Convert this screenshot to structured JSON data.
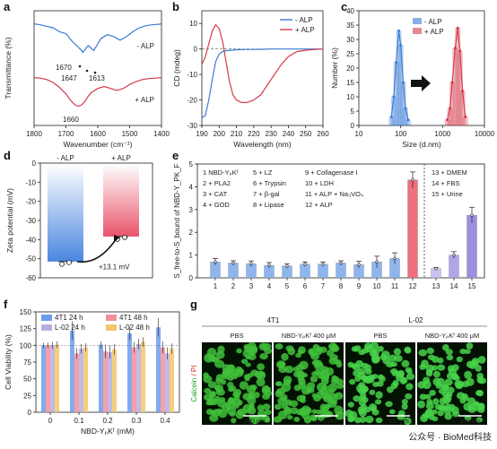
{
  "panels": {
    "a": {
      "label": "a",
      "chart_data": {
        "type": "line",
        "xlabel": "Wavenumber (cm⁻¹)",
        "ylabel": "Transmittance (%)",
        "xlim": [
          1800,
          1400
        ],
        "xticks": [
          "1800",
          "1700",
          "1600",
          "1500",
          "1400"
        ],
        "series": [
          {
            "name": "- ALP",
            "color": "#3a7bd5",
            "x": [
              1800,
              1780,
              1760,
              1740,
              1720,
              1700,
              1690,
              1680,
              1670,
              1660,
              1650,
              1647,
              1640,
              1630,
              1620,
              1613,
              1605,
              1590,
              1570,
              1550,
              1530,
              1510,
              1490,
              1470,
              1450,
              1430,
              1410,
              1400
            ],
            "y": [
              0.88,
              0.86,
              0.83,
              0.8,
              0.72,
              0.68,
              0.6,
              0.52,
              0.46,
              0.4,
              0.33,
              0.3,
              0.36,
              0.44,
              0.38,
              0.34,
              0.42,
              0.58,
              0.66,
              0.62,
              0.55,
              0.62,
              0.72,
              0.8,
              0.84,
              0.86,
              0.87,
              0.88
            ]
          },
          {
            "name": "+ ALP",
            "color": "#d33a4a",
            "x": [
              1800,
              1780,
              1760,
              1740,
              1720,
              1700,
              1690,
              1680,
              1670,
              1660,
              1650,
              1640,
              1630,
              1620,
              1610,
              1600,
              1580,
              1560,
              1540,
              1520,
              1500,
              1480,
              1460,
              1440,
              1420,
              1400
            ],
            "y": [
              0.88,
              0.87,
              0.84,
              0.78,
              0.68,
              0.55,
              0.46,
              0.38,
              0.32,
              0.3,
              0.33,
              0.4,
              0.5,
              0.58,
              0.62,
              0.66,
              0.7,
              0.66,
              0.62,
              0.66,
              0.74,
              0.8,
              0.84,
              0.86,
              0.87,
              0.88
            ]
          }
        ],
        "annotations": [
          "1670",
          "1647",
          "1613",
          "1660"
        ]
      }
    },
    "b": {
      "label": "b",
      "chart_data": {
        "type": "line",
        "xlabel": "Wavelength (nm)",
        "ylabel": "CD (mdeg)",
        "xlim": [
          190,
          260
        ],
        "ylim": [
          -30,
          15
        ],
        "xticks": [
          "190",
          "200",
          "210",
          "220",
          "230",
          "240",
          "250",
          "260"
        ],
        "yticks": [
          "-30",
          "-20",
          "-10",
          "0",
          "10"
        ],
        "series": [
          {
            "name": "- ALP",
            "color": "#3a7bd5",
            "x": [
              190,
              192,
              194,
              196,
              198,
              200,
              202,
              205,
              210,
              215,
              220,
              225,
              230,
              235,
              240,
              250,
              260
            ],
            "y": [
              -27,
              -26,
              -20,
              -12,
              -5,
              -2,
              -1,
              -0.6,
              -0.3,
              -0.2,
              -0.2,
              -0.1,
              0,
              0,
              0,
              0,
              0
            ]
          },
          {
            "name": "+ ALP",
            "color": "#d33a4a",
            "x": [
              190,
              192,
              194,
              196,
              198,
              200,
              202,
              204,
              206,
              208,
              210,
              213,
              216,
              220,
              224,
              228,
              232,
              236,
              240,
              245,
              250,
              255,
              260
            ],
            "y": [
              -6,
              -3,
              2,
              7,
              9.5,
              8,
              3,
              -5,
              -13,
              -18,
              -20,
              -21,
              -21,
              -20,
              -18,
              -14,
              -10,
              -6,
              -3,
              -1,
              -0.5,
              -0.2,
              0
            ]
          }
        ]
      }
    },
    "c": {
      "label": "c",
      "chart_data": {
        "type": "bar",
        "xlabel": "Size (d.nm)",
        "ylabel": "Number (%)",
        "xscale": "log",
        "xlim": [
          10,
          10000
        ],
        "ylim": [
          0,
          40
        ],
        "xticks": [
          "10",
          "100",
          "1000",
          "10000"
        ],
        "yticks": [
          "0",
          "5",
          "10",
          "15",
          "20",
          "25",
          "30",
          "35",
          "40"
        ],
        "series": [
          {
            "name": "- ALP",
            "color": "#3a7bd5",
            "x": [
              60,
              68,
              78,
              90,
              100,
              115,
              130,
              150
            ],
            "y": [
              3,
              10,
              22,
              33,
              28,
              15,
              6,
              2
            ]
          },
          {
            "name": "+ ALP",
            "color": "#d33a4a",
            "x": [
              1300,
              1500,
              1700,
              2000,
              2300,
              2600,
              3000,
              3500
            ],
            "y": [
              2,
              6,
              15,
              27,
              34,
              26,
              12,
              3
            ]
          }
        ]
      }
    },
    "d": {
      "label": "d",
      "chart_data": {
        "type": "bar",
        "ylabel": "Zeta potential (mV)",
        "ylim": [
          -60,
          0
        ],
        "yticks": [
          "-60",
          "-50",
          "-40",
          "-30",
          "-20",
          "-10",
          "0"
        ],
        "categories": [
          "- ALP",
          "+ ALP"
        ],
        "values": [
          -51.5,
          -38.4
        ],
        "colors": [
          "#4a86e0",
          "#e8556a"
        ],
        "annotation": "+13.1 mV"
      }
    },
    "e": {
      "label": "e",
      "chart_data": {
        "type": "bar",
        "ylabel": "S_free-to-S_bound of NBD-Y_PK_F",
        "ylim": [
          0,
          5
        ],
        "yticks": [
          "0",
          "1",
          "2",
          "3",
          "4",
          "5"
        ],
        "categories": [
          "1",
          "2",
          "3",
          "4",
          "5",
          "6",
          "7",
          "8",
          "9",
          "10",
          "11",
          "12",
          "13",
          "14",
          "15"
        ],
        "values": [
          0.7,
          0.65,
          0.62,
          0.55,
          0.52,
          0.6,
          0.6,
          0.65,
          0.58,
          0.7,
          0.85,
          4.3,
          0.4,
          1.0,
          2.75
        ],
        "errors": [
          0.15,
          0.1,
          0.12,
          0.12,
          0.1,
          0.1,
          0.1,
          0.1,
          0.15,
          0.25,
          0.25,
          0.35,
          0.05,
          0.15,
          0.35
        ],
        "legend": [
          "1  NBD-YₚKᶠ",
          "2  + PLA2",
          "3  + CAT",
          "4  + GOD",
          "5  + LZ",
          "6  + Trypsin",
          "7  + β-gal",
          "8  + Lipase",
          "9  + Collagenase I",
          "10 + LDH",
          "11 + ALP + Na₃VO₄",
          "12 + ALP",
          "13 + DMEM",
          "14 + FBS",
          "15 + Urine"
        ]
      }
    },
    "f": {
      "label": "f",
      "chart_data": {
        "type": "bar",
        "xlabel": "NBD-YₚKᶠ (mM)",
        "ylabel": "Cell Viability (%)",
        "ylim": [
          0,
          150
        ],
        "yticks": [
          "0",
          "25",
          "50",
          "75",
          "100",
          "125",
          "150"
        ],
        "categories": [
          "0",
          "0.1",
          "0.2",
          "0.3",
          "0.4"
        ],
        "series": [
          {
            "name": "4T1 24 h",
            "color": "#6f9bea",
            "values": [
              100,
              122,
              101,
              118,
              127
            ],
            "errors": [
              4,
              14,
              5,
              10,
              14
            ]
          },
          {
            "name": "4T1 48 h",
            "color": "#f28f9a",
            "values": [
              100,
              88,
              91,
              97,
              97
            ],
            "errors": [
              4,
              8,
              10,
              8,
              9
            ]
          },
          {
            "name": "L-02 24 h",
            "color": "#b7aee0",
            "values": [
              100,
              95,
              90,
              102,
              88
            ],
            "errors": [
              5,
              7,
              10,
              8,
              9
            ]
          },
          {
            "name": "L-02 48 h",
            "color": "#f2c76a",
            "values": [
              101,
              97,
              94,
              105,
              95
            ],
            "errors": [
              5,
              6,
              8,
              7,
              8
            ]
          }
        ]
      }
    },
    "g": {
      "label": "g",
      "groups": [
        "4T1",
        "L-02"
      ],
      "conditions": [
        "PBS",
        "NBD-YₚKᶠ 400 μM",
        "PBS",
        "NBD-YₚKᶠ 400 μM"
      ],
      "side_label_1": "Calcein",
      "side_label_2": " / PI",
      "scale_bar": "100 μm",
      "watermark": "公众号 · BioMed科技"
    }
  }
}
